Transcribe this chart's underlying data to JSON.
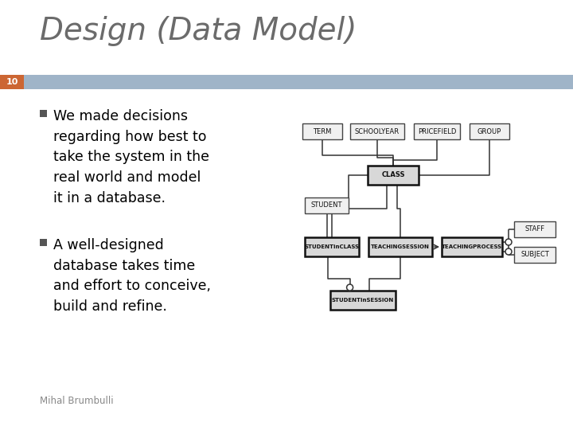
{
  "title": "Design (Data Model)",
  "slide_number": "10",
  "bullet1": "We made decisions\nregarding how best to\ntake the system in the\nreal world and model\nit in a database.",
  "bullet2": "A well-designed\ndatabase takes time\nand effort to conceive,\nbuild and refine.",
  "footer": "Mihal Brumbulli",
  "title_color": "#6b6b6b",
  "title_font_size": 28,
  "header_bar_color": "#9fb4c8",
  "slide_number_bg": "#cc6633",
  "slide_number_color": "#ffffff",
  "bullet_font_size": 12.5,
  "footer_font_size": 8.5,
  "background_color": "#ffffff",
  "diagram_box_fill_light": "#f0f0f0",
  "diagram_box_fill_dark": "#d8d8d8",
  "diagram_box_edge": "#444444",
  "diagram_box_edge_bold": "#111111"
}
